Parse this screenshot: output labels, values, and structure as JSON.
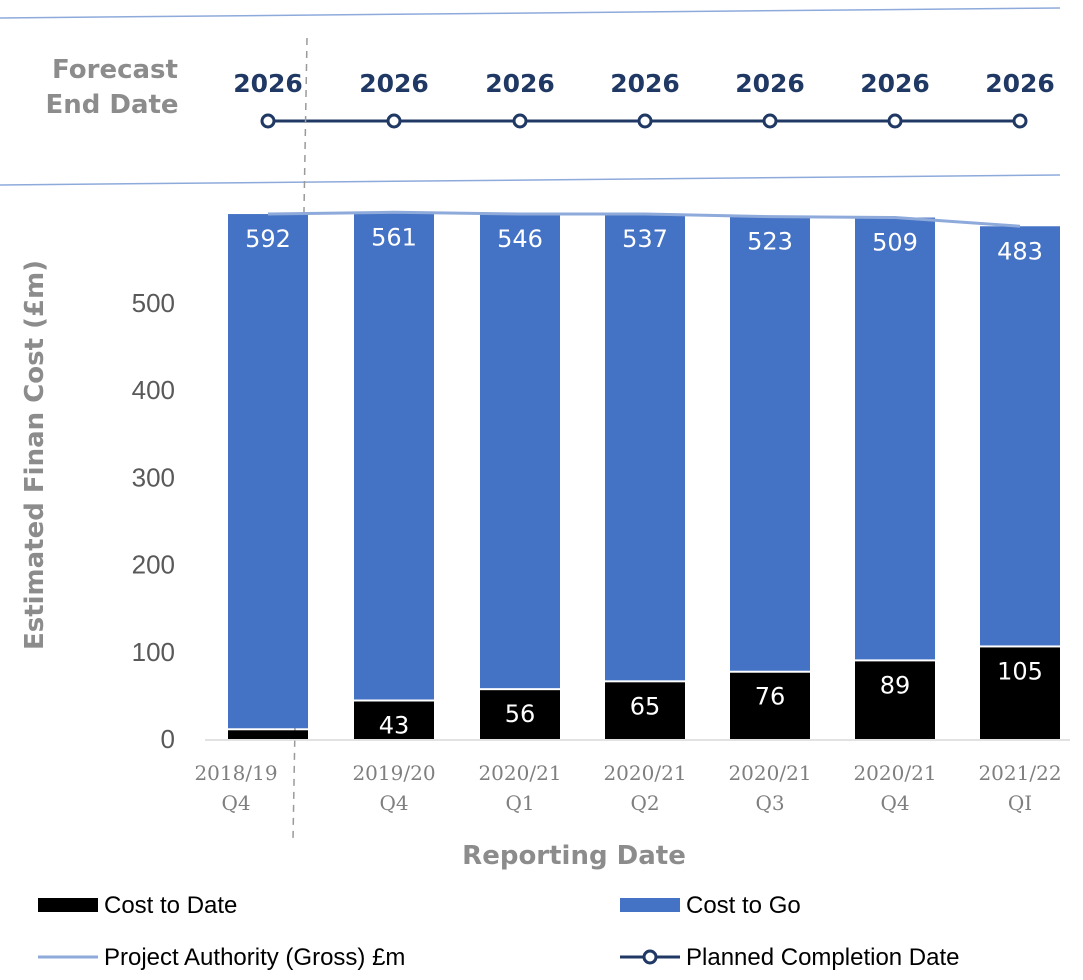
{
  "forecast_panel": {
    "label_line1": "Forecast",
    "label_line2": "End Date",
    "values": [
      "2026",
      "2026",
      "2026",
      "2026",
      "2026",
      "2026",
      "2026"
    ],
    "series_name": "Planned Completion Date"
  },
  "chart_data": {
    "type": "bar",
    "stacked": true,
    "categories": [
      [
        "2018/19",
        "Q4"
      ],
      [
        "2019/20",
        "Q4"
      ],
      [
        "2020/21",
        "Q1"
      ],
      [
        "2020/21",
        "Q2"
      ],
      [
        "2020/21",
        "Q3"
      ],
      [
        "2020/21",
        "Q4"
      ],
      [
        "2021/22",
        "QI"
      ]
    ],
    "series": [
      {
        "name": "Cost to Date",
        "values": [
          10,
          43,
          56,
          65,
          76,
          89,
          105
        ],
        "labels": [
          "",
          "43",
          "56",
          "65",
          "76",
          "89",
          "105"
        ]
      },
      {
        "name": "Cost to Go",
        "values": [
          592,
          561,
          546,
          537,
          523,
          509,
          483
        ],
        "labels": [
          "592",
          "561",
          "546",
          "537",
          "523",
          "509",
          "483"
        ]
      }
    ],
    "line_series": {
      "name": "Project Authority (Gross) £m",
      "values": [
        602,
        604,
        602,
        602,
        599,
        598,
        588
      ]
    },
    "ylabel": "Estimated Finan Cost (£m)",
    "xlabel": "Reporting Date",
    "ylim": [
      0,
      600
    ],
    "yticks": [
      0,
      100,
      200,
      300,
      400,
      500
    ],
    "colors": {
      "cost_to_date": "#000000",
      "cost_to_go": "#4472c4",
      "authority": "#8eaadb",
      "completion": "#1f3864"
    }
  },
  "legend": [
    {
      "label": "Cost to Date",
      "kind": "bar",
      "color": "#000000"
    },
    {
      "label": "Cost to Go",
      "kind": "bar",
      "color": "#4472c4"
    },
    {
      "label": "Project Authority (Gross) £m",
      "kind": "line",
      "color": "#8eaadb"
    },
    {
      "label": "Planned Completion Date",
      "kind": "line-marker",
      "color": "#1f3864"
    }
  ]
}
